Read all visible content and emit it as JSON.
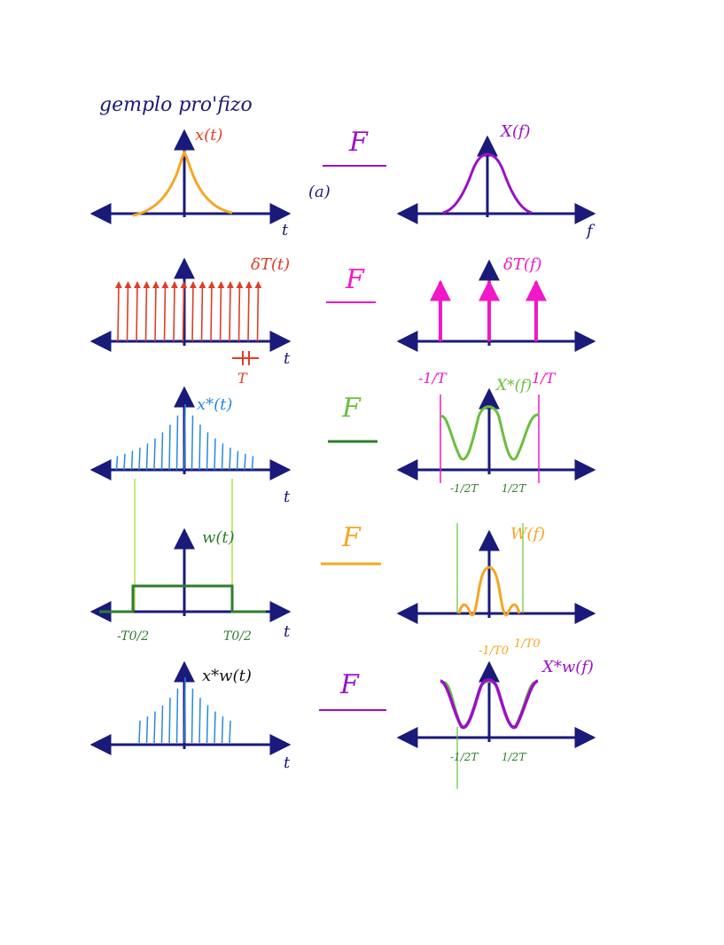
{
  "title": "gemplo pro'fizo",
  "tag_a": "(a)",
  "colors": {
    "axis": "#1a1a7a",
    "orange": "#f5a623",
    "red": "#e03c28",
    "purple": "#9b10c8",
    "magenta": "#f018c8",
    "blue": "#2a88e0",
    "green": "#6abf3a",
    "darkgreen": "#2e7d2e",
    "lightgreen": "#b8e04a",
    "black": "#111111"
  },
  "rows": [
    {
      "left_label": "x(t)",
      "left_axis": "t",
      "transform": "F",
      "right_label": "X(f)",
      "right_axis": "f"
    },
    {
      "left_label": "δT(t)",
      "left_axis": "t",
      "period_label": "T",
      "transform": "F",
      "right_label": "δT(f)"
    },
    {
      "left_label": "x*(t)",
      "left_axis": "t",
      "transform": "F",
      "right_label": "X*(f)",
      "right_left_mark": "-1/T",
      "right_right_mark": "1/T",
      "right_low_left": "-1/2T",
      "right_low_right": "1/2T"
    },
    {
      "left_label": "w(t)",
      "left_axis": "t",
      "left_low_left": "-T0/2",
      "left_low_right": "T0/2",
      "transform": "F",
      "right_label": "W(f)"
    },
    {
      "left_label": "x*w(t)",
      "left_axis": "t",
      "transform": "F",
      "right_label": "X*w(f)",
      "right_top_left": "-1/T0",
      "right_top_right": "1/T0",
      "right_low_left": "-1/2T",
      "right_low_right": "1/2T"
    }
  ]
}
